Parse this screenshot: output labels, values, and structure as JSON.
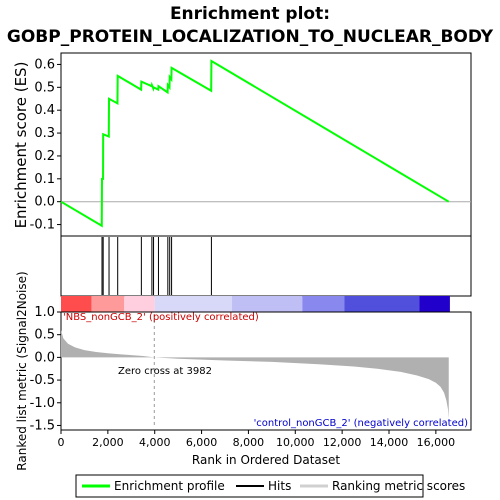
{
  "chart_data": {
    "type": "line",
    "title_line1": "Enrichment plot:",
    "title_line2": "GOBP_PROTEIN_LOCALIZATION_TO_NUCLEAR_BODY",
    "es_ylabel": "Enrichment score (ES)",
    "metric_ylabel": "Ranked list metric (Signal2Noise)",
    "xlabel": "Rank in Ordered Dataset",
    "xlim": [
      0,
      17500
    ],
    "x_ticks": [
      0,
      2000,
      4000,
      6000,
      8000,
      10000,
      12000,
      14000,
      16000
    ],
    "x_tick_labels": [
      "0",
      "2,000",
      "4,000",
      "6,000",
      "8,000",
      "10,000",
      "12,000",
      "14,000",
      "16,000"
    ],
    "es_ylim": [
      -0.15,
      0.65
    ],
    "es_ticks": [
      -0.1,
      0.0,
      0.1,
      0.2,
      0.3,
      0.4,
      0.5,
      0.6
    ],
    "es_tick_labels": [
      "-0.1",
      "0.0",
      "0.1",
      "0.2",
      "0.3",
      "0.4",
      "0.5",
      "0.6"
    ],
    "metric_ylim": [
      -1.6,
      1.0
    ],
    "metric_ticks": [
      -1.5,
      -1.0,
      -0.5,
      0.0,
      0.5,
      1.0
    ],
    "metric_tick_labels": [
      "-1.5",
      "-1.0",
      "-0.5",
      "0.0",
      "0.5",
      "1.0"
    ],
    "hits": [
      1750,
      1800,
      2050,
      2420,
      3430,
      3880,
      3950,
      4160,
      4560,
      4640,
      4720,
      6420
    ],
    "es_series": {
      "name": "Enrichment profile",
      "x": [
        0,
        1740,
        1750,
        1795,
        1800,
        2040,
        2050,
        2410,
        2420,
        3420,
        3430,
        3870,
        3880,
        3940,
        3950,
        4150,
        4160,
        4550,
        4560,
        4630,
        4640,
        4710,
        4720,
        6410,
        6420,
        16550
      ],
      "y": [
        0.0,
        -0.105,
        0.1,
        0.1,
        0.295,
        0.285,
        0.45,
        0.43,
        0.55,
        0.49,
        0.525,
        0.505,
        0.51,
        0.495,
        0.5,
        0.49,
        0.505,
        0.478,
        0.51,
        0.5,
        0.545,
        0.535,
        0.585,
        0.485,
        0.615,
        0.0
      ]
    },
    "zero_cross_label": "Zero cross at 3982",
    "zero_cross": 3982,
    "pos_label": "'NBS_nonGCB_2' (positively correlated)",
    "neg_label": "'control_nonGCB_2' (negatively correlated)",
    "metric_profile": {
      "x": [
        0,
        100,
        300,
        600,
        1000,
        1500,
        2000,
        2500,
        3000,
        3500,
        3982,
        5000,
        7000,
        9000,
        11000,
        12500,
        13500,
        14500,
        15200,
        15700,
        16000,
        16200,
        16350,
        16450,
        16520,
        16550
      ],
      "y": [
        0.6,
        0.42,
        0.3,
        0.22,
        0.16,
        0.12,
        0.09,
        0.07,
        0.05,
        0.03,
        0.0,
        -0.03,
        -0.07,
        -0.1,
        -0.15,
        -0.2,
        -0.25,
        -0.32,
        -0.4,
        -0.48,
        -0.56,
        -0.65,
        -0.78,
        -0.95,
        -1.15,
        -1.35
      ]
    },
    "colorbar": [
      {
        "from": 0,
        "to": 1300,
        "color": "#ff4d4d"
      },
      {
        "from": 1300,
        "to": 2700,
        "color": "#ff9a9a"
      },
      {
        "from": 2700,
        "to": 4000,
        "color": "#ffcfe0"
      },
      {
        "from": 4000,
        "to": 7300,
        "color": "#d8d8f8"
      },
      {
        "from": 7300,
        "to": 10300,
        "color": "#bfbff5"
      },
      {
        "from": 10300,
        "to": 12100,
        "color": "#8888ee"
      },
      {
        "from": 12100,
        "to": 15300,
        "color": "#5050dd"
      },
      {
        "from": 15300,
        "to": 16600,
        "color": "#2200cc"
      }
    ],
    "legend": [
      "Enrichment profile",
      "Hits",
      "Ranking metric scores"
    ],
    "colors": {
      "es_line": "#00ff00",
      "hits": "#000000",
      "metric_fill": "#b0b0b0",
      "zero_line": "#b4b4b4",
      "legend_metric": "#d0d0d0"
    }
  }
}
